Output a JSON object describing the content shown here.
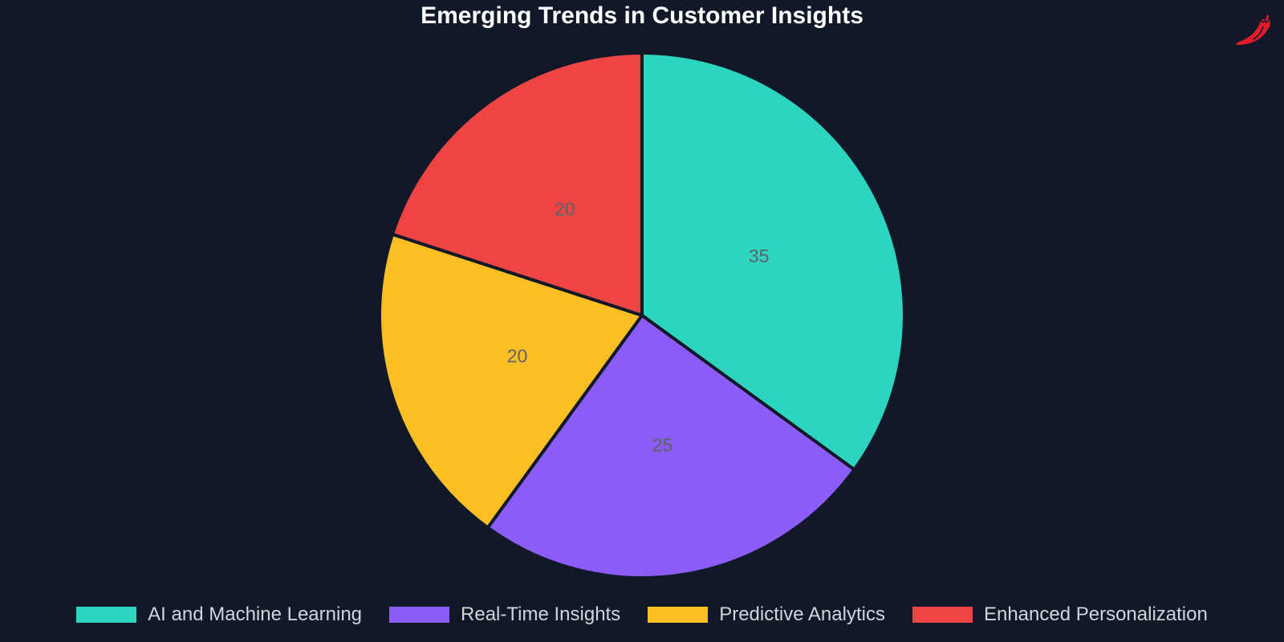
{
  "chart_data": {
    "type": "pie",
    "title": "Emerging Trends in Customer Insights",
    "categories": [
      "AI and Machine Learning",
      "Real-Time Insights",
      "Predictive Analytics",
      "Enhanced Personalization"
    ],
    "values": [
      35,
      25,
      20,
      20
    ],
    "colors": [
      "#2dd4bf",
      "#8b5cf6",
      "#fbbf24",
      "#ef4444"
    ],
    "start_angle": "top (12 o'clock)",
    "direction": "clockwise",
    "data_labels": [
      "35",
      "25",
      "20",
      "20"
    ],
    "legend_position": "bottom"
  },
  "header": {
    "title": "Emerging Trends in Customer Insights"
  },
  "logo": {
    "icon": "chili-pepper-icon",
    "color": "#e11d2a"
  },
  "legend": {
    "items": [
      {
        "label": "AI and Machine Learning",
        "color": "#2dd4bf"
      },
      {
        "label": "Real-Time Insights",
        "color": "#8b5cf6"
      },
      {
        "label": "Predictive Analytics",
        "color": "#fbbf24"
      },
      {
        "label": "Enhanced Personalization",
        "color": "#ef4444"
      }
    ]
  },
  "theme": {
    "background": "#111827",
    "slice_border": "#111827",
    "label_color": "#5f6368"
  }
}
